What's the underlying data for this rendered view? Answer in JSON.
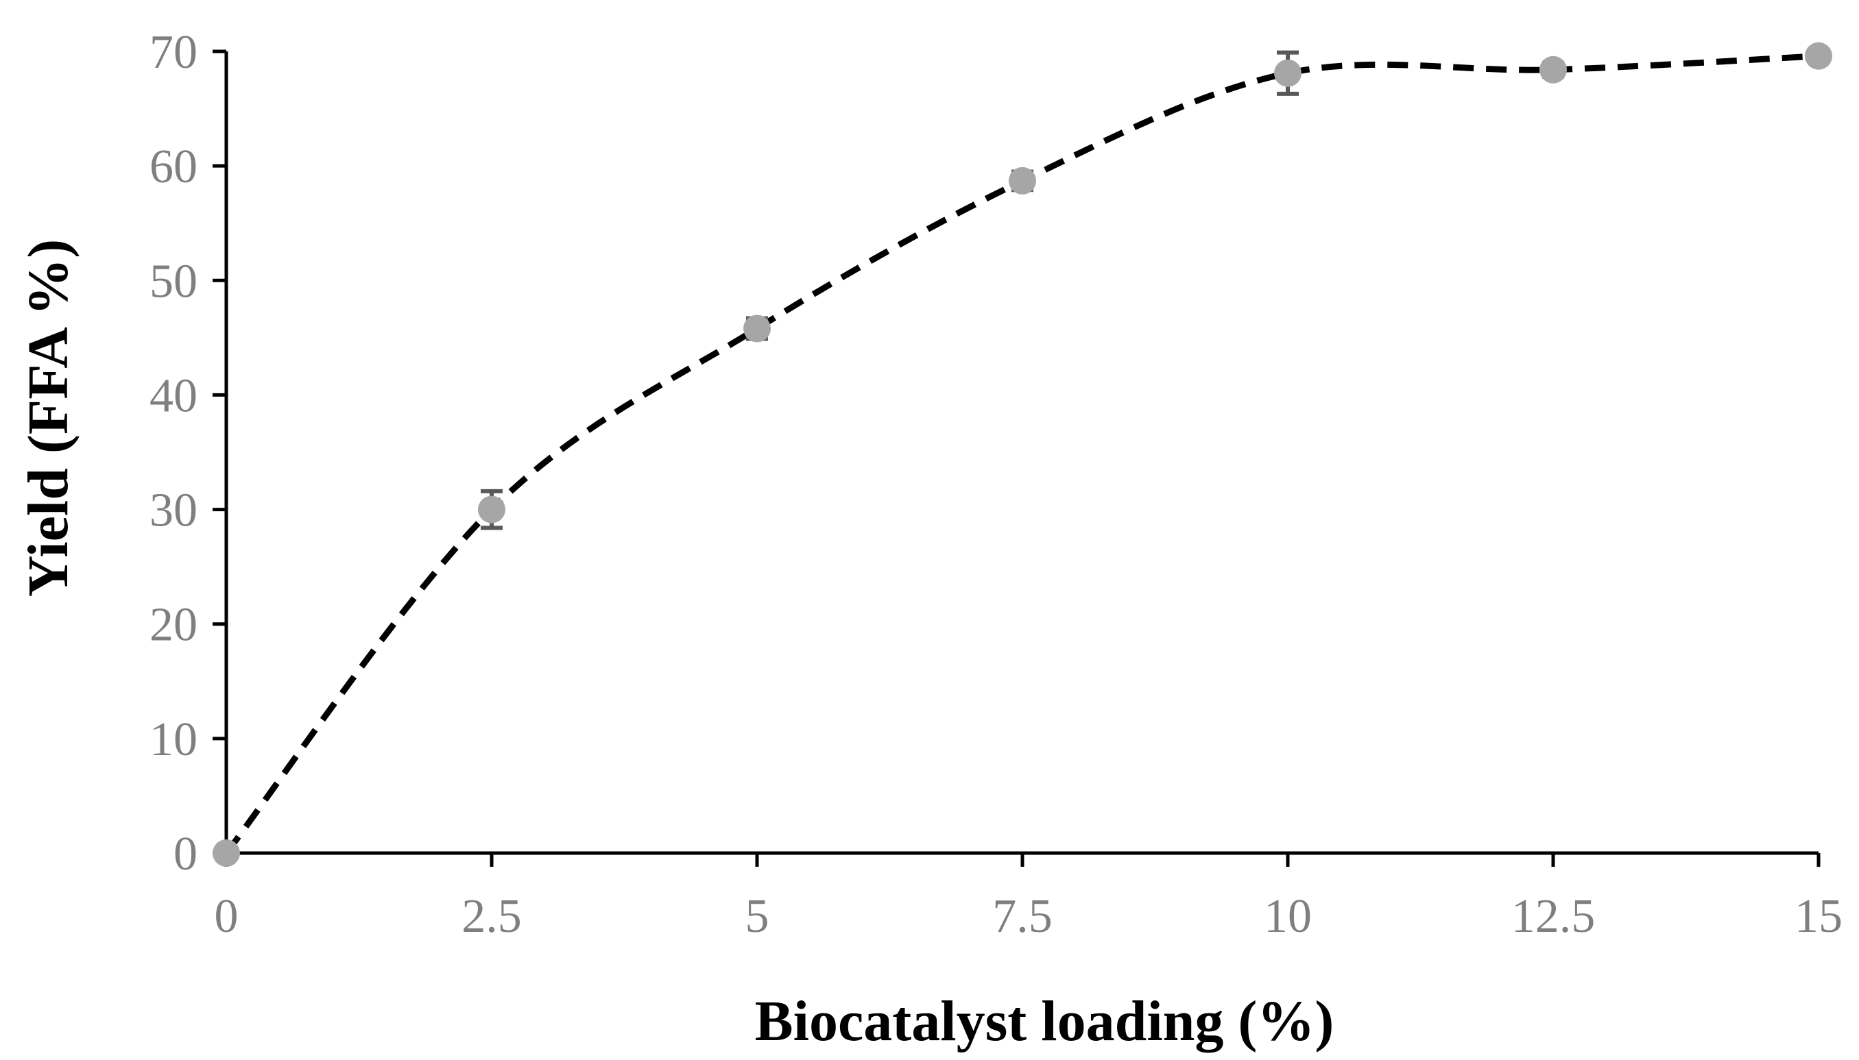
{
  "chart_data": {
    "type": "scatter",
    "title": "",
    "xlabel": "Biocatalyst loading (%)",
    "ylabel": "Yield (FFA %)",
    "xlim": [
      0,
      15
    ],
    "ylim": [
      0,
      70
    ],
    "xticks": [
      0,
      2.5,
      5,
      7.5,
      10,
      12.5,
      15
    ],
    "xtick_labels": [
      "0",
      "2.5",
      "5",
      "7.5",
      "10",
      "12.5",
      "15"
    ],
    "yticks": [
      0,
      10,
      20,
      30,
      40,
      50,
      60,
      70
    ],
    "ytick_labels": [
      "0",
      "10",
      "20",
      "30",
      "40",
      "50",
      "60",
      "70"
    ],
    "grid": false,
    "series": [
      {
        "name": "Yield",
        "x": [
          0,
          2.5,
          5,
          7.5,
          10,
          12.5,
          15
        ],
        "y": [
          0,
          30,
          45.8,
          58.7,
          68.1,
          68.4,
          69.6
        ],
        "error": [
          0,
          1.6,
          0.9,
          0.8,
          1.8,
          0.6,
          0.5
        ],
        "marker_color": "#a6a6a6",
        "error_color": "#595959",
        "line_color": "#000000",
        "line_style": "dashed smooth"
      }
    ]
  }
}
